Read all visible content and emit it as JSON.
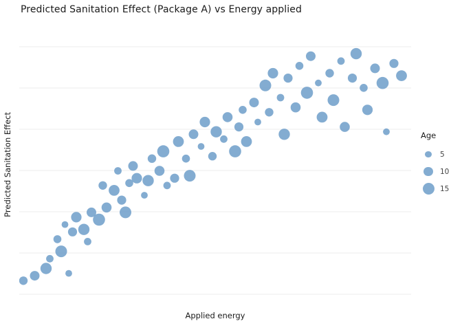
{
  "chart_data": {
    "type": "scatter",
    "title": "Predicted Sanitation Effect (Package A) vs Energy applied",
    "xlabel": "Applied energy",
    "ylabel": "Predicted Sanitation Effect",
    "x_range": [
      0,
      100
    ],
    "y_range": [
      0,
      1
    ],
    "axis_tick_labels_visible": false,
    "grid": {
      "horizontal": true,
      "vertical": false,
      "color": "#ececec",
      "count": 7
    },
    "legend": {
      "title": "Age",
      "sizes": [
        5,
        10,
        15
      ],
      "position": "right"
    },
    "point_color": "#6d9dc9",
    "point_opacity": 0.85,
    "points": [
      {
        "x": 0,
        "y": 0.05,
        "age": 8
      },
      {
        "x": 3,
        "y": 0.07,
        "age": 10
      },
      {
        "x": 6,
        "y": 0.1,
        "age": 14
      },
      {
        "x": 7,
        "y": 0.14,
        "age": 6
      },
      {
        "x": 10,
        "y": 0.17,
        "age": 15
      },
      {
        "x": 12,
        "y": 0.08,
        "age": 5
      },
      {
        "x": 9,
        "y": 0.22,
        "age": 7
      },
      {
        "x": 13,
        "y": 0.25,
        "age": 9
      },
      {
        "x": 11,
        "y": 0.28,
        "age": 5
      },
      {
        "x": 14,
        "y": 0.31,
        "age": 12
      },
      {
        "x": 16,
        "y": 0.26,
        "age": 14
      },
      {
        "x": 17,
        "y": 0.21,
        "age": 6
      },
      {
        "x": 18,
        "y": 0.33,
        "age": 10
      },
      {
        "x": 20,
        "y": 0.3,
        "age": 16
      },
      {
        "x": 21,
        "y": 0.44,
        "age": 8
      },
      {
        "x": 22,
        "y": 0.35,
        "age": 11
      },
      {
        "x": 24,
        "y": 0.42,
        "age": 13
      },
      {
        "x": 25,
        "y": 0.5,
        "age": 6
      },
      {
        "x": 26,
        "y": 0.38,
        "age": 9
      },
      {
        "x": 27,
        "y": 0.33,
        "age": 15
      },
      {
        "x": 28,
        "y": 0.45,
        "age": 7
      },
      {
        "x": 29,
        "y": 0.52,
        "age": 10
      },
      {
        "x": 30,
        "y": 0.47,
        "age": 12
      },
      {
        "x": 32,
        "y": 0.4,
        "age": 5
      },
      {
        "x": 33,
        "y": 0.46,
        "age": 14
      },
      {
        "x": 34,
        "y": 0.55,
        "age": 8
      },
      {
        "x": 36,
        "y": 0.5,
        "age": 11
      },
      {
        "x": 37,
        "y": 0.58,
        "age": 16
      },
      {
        "x": 38,
        "y": 0.44,
        "age": 6
      },
      {
        "x": 40,
        "y": 0.47,
        "age": 9
      },
      {
        "x": 41,
        "y": 0.62,
        "age": 13
      },
      {
        "x": 43,
        "y": 0.55,
        "age": 7
      },
      {
        "x": 44,
        "y": 0.48,
        "age": 15
      },
      {
        "x": 45,
        "y": 0.65,
        "age": 10
      },
      {
        "x": 47,
        "y": 0.6,
        "age": 5
      },
      {
        "x": 48,
        "y": 0.7,
        "age": 12
      },
      {
        "x": 50,
        "y": 0.56,
        "age": 8
      },
      {
        "x": 51,
        "y": 0.66,
        "age": 14
      },
      {
        "x": 53,
        "y": 0.63,
        "age": 6
      },
      {
        "x": 54,
        "y": 0.72,
        "age": 11
      },
      {
        "x": 56,
        "y": 0.58,
        "age": 16
      },
      {
        "x": 57,
        "y": 0.68,
        "age": 9
      },
      {
        "x": 58,
        "y": 0.75,
        "age": 7
      },
      {
        "x": 59,
        "y": 0.62,
        "age": 13
      },
      {
        "x": 61,
        "y": 0.78,
        "age": 10
      },
      {
        "x": 62,
        "y": 0.7,
        "age": 5
      },
      {
        "x": 64,
        "y": 0.85,
        "age": 15
      },
      {
        "x": 65,
        "y": 0.74,
        "age": 8
      },
      {
        "x": 66,
        "y": 0.9,
        "age": 12
      },
      {
        "x": 68,
        "y": 0.8,
        "age": 6
      },
      {
        "x": 69,
        "y": 0.65,
        "age": 14
      },
      {
        "x": 70,
        "y": 0.88,
        "age": 9
      },
      {
        "x": 72,
        "y": 0.76,
        "age": 11
      },
      {
        "x": 73,
        "y": 0.93,
        "age": 7
      },
      {
        "x": 75,
        "y": 0.82,
        "age": 16
      },
      {
        "x": 76,
        "y": 0.97,
        "age": 10
      },
      {
        "x": 78,
        "y": 0.86,
        "age": 5
      },
      {
        "x": 79,
        "y": 0.72,
        "age": 13
      },
      {
        "x": 81,
        "y": 0.9,
        "age": 8
      },
      {
        "x": 82,
        "y": 0.79,
        "age": 15
      },
      {
        "x": 84,
        "y": 0.95,
        "age": 6
      },
      {
        "x": 85,
        "y": 0.68,
        "age": 11
      },
      {
        "x": 87,
        "y": 0.88,
        "age": 9
      },
      {
        "x": 88,
        "y": 0.98,
        "age": 14
      },
      {
        "x": 90,
        "y": 0.84,
        "age": 7
      },
      {
        "x": 91,
        "y": 0.75,
        "age": 12
      },
      {
        "x": 93,
        "y": 0.92,
        "age": 10
      },
      {
        "x": 95,
        "y": 0.86,
        "age": 16
      },
      {
        "x": 96,
        "y": 0.66,
        "age": 5
      },
      {
        "x": 98,
        "y": 0.94,
        "age": 9
      },
      {
        "x": 100,
        "y": 0.89,
        "age": 13
      }
    ]
  }
}
